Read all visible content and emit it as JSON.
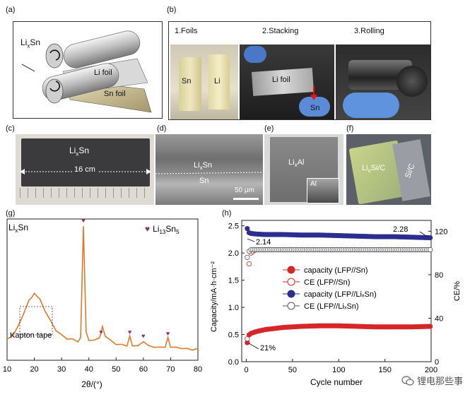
{
  "panels": {
    "a": {
      "label": "(a)",
      "li_sn": "Li",
      "li_sn_sub": "x",
      "li_sn_tail": "Sn",
      "li_foil": "Li foil",
      "sn_foil": "Sn foil"
    },
    "b": {
      "label": "(b)",
      "step1": "1.Foils",
      "step2": "2.Stacking",
      "step3": "3.Rolling",
      "foil_sn": "Sn",
      "foil_li": "Li",
      "stack_li": "Li foil",
      "stack_sn": "Sn"
    },
    "c": {
      "label": "(c)",
      "title": "Li",
      "title_sub": "x",
      "title_tail": "Sn",
      "length": "16 cm"
    },
    "d": {
      "label": "(d)",
      "layer_top": "Li",
      "layer_top_sub": "x",
      "layer_top_tail": "Sn",
      "layer_bottom": "Sn",
      "scale": "50 μm"
    },
    "e": {
      "label": "(e)",
      "title": "Li",
      "title_sub": "x",
      "title_tail": "Al",
      "inset": "Al"
    },
    "f": {
      "label": "(f)",
      "title": "Li",
      "title_sub": "x",
      "title_tail": "Si/C",
      "side": "Si/C"
    },
    "g": {
      "label": "(g)",
      "corner": "Li",
      "corner_sub": "x",
      "corner_tail": "Sn",
      "phase": "Li",
      "phase_sub1": "13",
      "phase_mid": "Sn",
      "phase_sub2": "5",
      "kapton": "Kapton tape",
      "xlabel": "2θ/(°)",
      "marker_color": "#8b2f6b"
    },
    "h": {
      "label": "(h)",
      "ylabel_left": "Capacity/mA·h·cm⁻²",
      "ylabel_right": "CE/%",
      "xlabel": "Cycle number",
      "ann_228": "2.28",
      "ann_214": "2.14",
      "ann_21": "21%",
      "legend": [
        "capacity (LFP//Sn)",
        "CE (LFP//Sn)",
        "capacity (LFP//LiₓSn)",
        "CE (LFP//LiₓSn)"
      ],
      "red": "#d62728",
      "blue": "#2b2f8f"
    }
  },
  "watermark": "锂电那些事",
  "chart_data": [
    {
      "type": "line",
      "panel": "g",
      "x": [
        10,
        12,
        14,
        16,
        18,
        19,
        20,
        21,
        22,
        24,
        26,
        28,
        30,
        32,
        34,
        36,
        37,
        38,
        39,
        40,
        42,
        44,
        45,
        46,
        48,
        50,
        52,
        54,
        55,
        56,
        58,
        60,
        62,
        64,
        66,
        68,
        69,
        70,
        72,
        74,
        76,
        78,
        80
      ],
      "series": [
        {
          "values": [
            0.15,
            0.18,
            0.24,
            0.34,
            0.43,
            0.46,
            0.48,
            0.47,
            0.44,
            0.36,
            0.28,
            0.22,
            0.18,
            0.16,
            0.15,
            0.14,
            0.16,
            0.98,
            0.2,
            0.15,
            0.14,
            0.17,
            0.24,
            0.18,
            0.14,
            0.12,
            0.11,
            0.11,
            0.17,
            0.11,
            0.1,
            0.14,
            0.1,
            0.1,
            0.09,
            0.1,
            0.16,
            0.1,
            0.09,
            0.09,
            0.08,
            0.08,
            0.08
          ]
        }
      ],
      "peaks_marked": [
        38,
        44.5,
        55,
        60,
        69
      ],
      "xlabel": "2θ/(°)",
      "xlim": [
        10,
        80
      ],
      "xticks": [
        10,
        20,
        30,
        40,
        50,
        60,
        70,
        80
      ]
    },
    {
      "type": "scatter",
      "panel": "h",
      "x": [
        1,
        2,
        5,
        10,
        20,
        40,
        60,
        80,
        100,
        120,
        140,
        160,
        180,
        200
      ],
      "series": [
        {
          "name": "capacity (LFP//Sn)",
          "axis": "left",
          "values": [
            0.35,
            0.48,
            0.52,
            0.55,
            0.59,
            0.63,
            0.65,
            0.66,
            0.66,
            0.65,
            0.64,
            0.64,
            0.64,
            0.65
          ]
        },
        {
          "name": "CE (LFP//Sn)",
          "axis": "right",
          "values": [
            21,
            85,
            100,
            103,
            103,
            103,
            103,
            103,
            103,
            103,
            103,
            103,
            103,
            103
          ]
        },
        {
          "name": "capacity (LFP//LiₓSn)",
          "axis": "left",
          "values": [
            2.45,
            2.38,
            2.36,
            2.35,
            2.34,
            2.34,
            2.33,
            2.33,
            2.32,
            2.31,
            2.3,
            2.3,
            2.29,
            2.28
          ]
        },
        {
          "name": "CE (LFP//LiₓSn)",
          "axis": "right",
          "values": [
            96,
            101,
            103,
            103,
            103,
            103,
            103,
            103,
            103,
            103,
            103,
            103,
            103,
            103
          ]
        }
      ],
      "xlabel": "Cycle number",
      "ylabel": "Capacity/mA·h·cm⁻²",
      "y2label": "CE/%",
      "xlim": [
        -5,
        200
      ],
      "ylim": [
        0,
        2.6
      ],
      "y2lim": [
        0,
        130
      ],
      "xticks": [
        0,
        50,
        100,
        150,
        200
      ],
      "yticks": [
        0,
        0.5,
        1.0,
        1.5,
        2.0,
        2.5
      ],
      "y2ticks": [
        0,
        40,
        80,
        120
      ]
    }
  ]
}
